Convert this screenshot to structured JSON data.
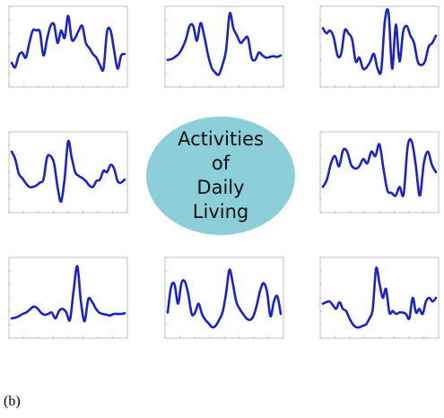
{
  "center_label": {
    "lines": [
      "Activities",
      "of",
      "Daily",
      "Living"
    ],
    "fill_color": "#8ccfd8"
  },
  "subfigure_label": "(b)",
  "line_color": "#1a22c8",
  "panels": [
    {
      "id": 1,
      "signal": [
        0.28,
        0.22,
        0.38,
        0.42,
        0.35,
        0.55,
        0.72,
        0.72,
        0.7,
        0.38,
        0.6,
        0.78,
        0.8,
        0.55,
        0.72,
        0.62,
        0.92,
        0.6,
        0.62,
        0.72,
        0.78,
        0.55,
        0.48,
        0.4,
        0.35,
        0.25,
        0.2,
        0.7,
        0.72,
        0.45,
        0.2,
        0.38,
        0.4
      ]
    },
    {
      "id": 2,
      "signal": [
        0.32,
        0.33,
        0.36,
        0.4,
        0.48,
        0.6,
        0.78,
        0.78,
        0.58,
        0.82,
        0.65,
        0.4,
        0.22,
        0.15,
        0.12,
        0.25,
        0.45,
        0.95,
        0.75,
        0.65,
        0.55,
        0.6,
        0.62,
        0.35,
        0.32,
        0.42,
        0.38,
        0.35,
        0.36,
        0.37,
        0.36,
        0.38
      ]
    },
    {
      "id": 3,
      "signal": [
        0.75,
        0.68,
        0.72,
        0.62,
        0.38,
        0.4,
        0.72,
        0.68,
        0.6,
        0.3,
        0.35,
        0.2,
        0.22,
        0.3,
        0.4,
        0.2,
        0.18,
        0.85,
        0.96,
        0.2,
        0.8,
        0.3,
        0.7,
        0.78,
        0.65,
        0.55,
        0.3,
        0.25,
        0.3,
        0.5,
        0.55,
        0.65
      ]
    },
    {
      "id": 4,
      "signal": [
        0.78,
        0.68,
        0.48,
        0.42,
        0.35,
        0.3,
        0.3,
        0.32,
        0.36,
        0.4,
        0.7,
        0.72,
        0.62,
        0.3,
        0.1,
        0.42,
        0.92,
        0.7,
        0.5,
        0.45,
        0.42,
        0.38,
        0.32,
        0.3,
        0.38,
        0.4,
        0.52,
        0.5,
        0.6,
        0.55,
        0.38,
        0.36,
        0.4
      ]
    },
    {
      "id": 6,
      "signal": [
        0.3,
        0.4,
        0.62,
        0.72,
        0.58,
        0.8,
        0.78,
        0.6,
        0.55,
        0.58,
        0.68,
        0.62,
        0.78,
        0.72,
        0.88,
        0.55,
        0.25,
        0.22,
        0.18,
        0.3,
        0.2,
        0.85,
        0.92,
        0.6,
        0.18,
        0.62,
        0.78,
        0.6,
        0.5
      ]
    },
    {
      "id": 7,
      "signal": [
        0.22,
        0.23,
        0.25,
        0.28,
        0.3,
        0.34,
        0.38,
        0.36,
        0.3,
        0.27,
        0.28,
        0.3,
        0.22,
        0.32,
        0.35,
        0.3,
        0.2,
        0.6,
        0.93,
        0.45,
        0.18,
        0.48,
        0.45,
        0.36,
        0.3,
        0.28,
        0.27,
        0.26,
        0.28,
        0.28,
        0.28,
        0.29
      ]
    },
    {
      "id": 8,
      "signal": [
        0.3,
        0.65,
        0.68,
        0.42,
        0.7,
        0.72,
        0.55,
        0.28,
        0.3,
        0.42,
        0.28,
        0.2,
        0.15,
        0.1,
        0.12,
        0.2,
        0.3,
        0.55,
        0.88,
        0.7,
        0.45,
        0.35,
        0.28,
        0.22,
        0.2,
        0.25,
        0.4,
        0.6,
        0.7,
        0.58,
        0.25,
        0.45,
        0.52,
        0.28
      ]
    },
    {
      "id": 9,
      "signal": [
        0.42,
        0.44,
        0.45,
        0.4,
        0.35,
        0.44,
        0.35,
        0.32,
        0.22,
        0.14,
        0.1,
        0.1,
        0.12,
        0.14,
        0.22,
        0.35,
        0.9,
        0.7,
        0.5,
        0.62,
        0.3,
        0.32,
        0.28,
        0.3,
        0.3,
        0.28,
        0.22,
        0.5,
        0.3,
        0.35,
        0.28,
        0.45,
        0.5,
        0.45,
        0.5
      ]
    }
  ]
}
